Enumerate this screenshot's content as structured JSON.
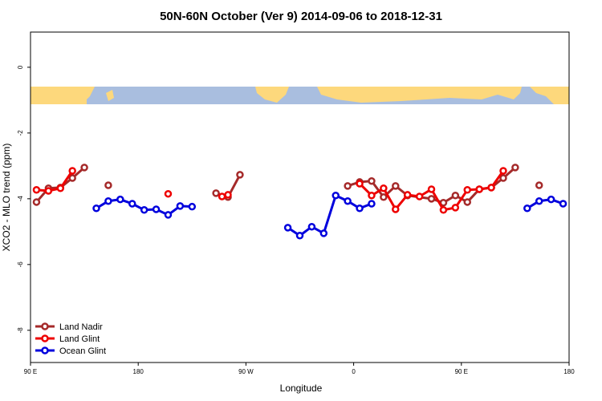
{
  "chart_data": {
    "type": "line",
    "title": "50N-60N October (Ver 9)   2014-09-06 to 2018-12-31",
    "x_label": "Longitude",
    "y_label": "XCO2 - MLO trend (ppm)",
    "xlim": [
      90,
      540
    ],
    "xticks": [
      {
        "value": 90,
        "label": "90 E"
      },
      {
        "value": 180,
        "label": "180"
      },
      {
        "value": 270,
        "label": "90 W"
      },
      {
        "value": 360,
        "label": "0"
      },
      {
        "value": 450,
        "label": "90 E"
      },
      {
        "value": 540,
        "label": "180"
      }
    ],
    "ylim": [
      -8.98,
      1.07
    ],
    "yticks": [
      0,
      -2,
      -4,
      -6,
      -8
    ],
    "legend": "bottom-left",
    "series": [
      {
        "name": "Land Nadir",
        "color": "#a52a2a",
        "x": [
          95,
          105,
          115,
          125,
          135,
          145,
          155,
          165,
          245,
          255,
          265,
          275,
          355,
          365,
          375,
          385,
          395,
          405,
          425,
          435,
          445,
          455,
          465,
          475,
          485,
          495,
          505,
          515
        ],
        "values": [
          -4.1,
          -3.68,
          -3.66,
          -3.37,
          -3.05,
          null,
          -3.59,
          null,
          -3.83,
          -3.95,
          -3.27,
          null,
          -3.61,
          -3.49,
          -3.46,
          -3.95,
          -3.61,
          -3.9,
          -4.0,
          -4.12,
          -3.9,
          -4.1,
          -3.71,
          -3.66,
          -3.37,
          -3.05,
          null,
          -3.59
        ]
      },
      {
        "name": "Land Glint",
        "color": "#ee0000",
        "x": [
          95,
          105,
          115,
          125,
          135,
          205,
          215,
          250,
          255,
          265,
          365,
          375,
          385,
          395,
          405,
          415,
          425,
          435,
          445,
          455,
          465,
          475,
          485
        ],
        "values": [
          -3.73,
          -3.76,
          -3.68,
          -3.15,
          null,
          -3.85,
          null,
          -3.93,
          -3.88,
          null,
          -3.54,
          -3.9,
          -3.68,
          -4.32,
          -3.88,
          -3.93,
          -3.71,
          -4.34,
          -4.27,
          -3.73,
          -3.71,
          -3.66,
          -3.15
        ]
      },
      {
        "name": "Ocean Glint",
        "color": "#0000dd",
        "x": [
          145,
          155,
          165,
          175,
          185,
          195,
          205,
          215,
          225,
          235,
          305,
          315,
          325,
          335,
          345,
          355,
          365,
          375,
          385,
          505,
          515,
          525,
          535
        ],
        "values": [
          -4.29,
          -4.07,
          -4.02,
          -4.15,
          -4.34,
          -4.32,
          -4.49,
          -4.22,
          -4.24,
          null,
          -4.88,
          -5.12,
          -4.85,
          -5.05,
          -3.9,
          -4.07,
          -4.29,
          -4.15,
          null,
          -4.29,
          -4.07,
          -4.02,
          -4.15
        ]
      }
    ]
  }
}
